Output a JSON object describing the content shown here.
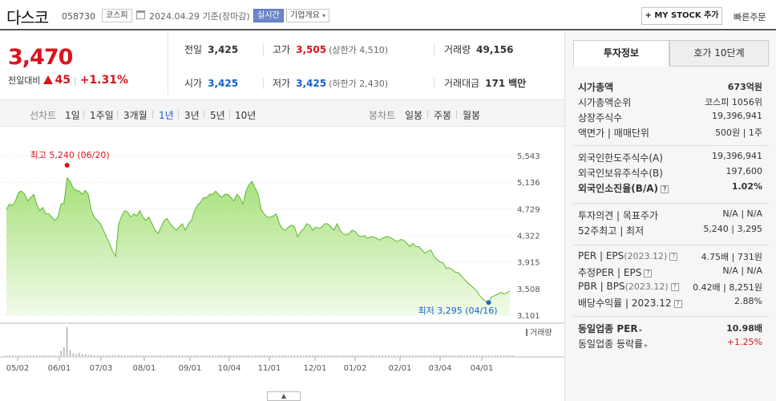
{
  "header": {
    "name": "다스코",
    "code": "058730",
    "market": "코스피",
    "date": "2024.04.29",
    "basis": "기준(장마감)",
    "live": "실시간",
    "company_info": "기업개요",
    "mystock": "+ MY STOCK 추가",
    "fast_order": "빠른주문"
  },
  "price": {
    "current": "3,470",
    "change_label": "전일대비",
    "change": "45",
    "change_pct": "+1.31%"
  },
  "stats": {
    "prev_label": "전일",
    "prev": "3,425",
    "high_label": "고가",
    "high": "3,505",
    "upper_limit": "(상한가 4,510)",
    "volume_label": "거래량",
    "volume": "49,156",
    "open_label": "시가",
    "open": "3,425",
    "low_label": "저가",
    "low": "3,425",
    "lower_limit": "(하한가 2,430)",
    "amount_label": "거래대금",
    "amount": "171",
    "amount_unit": "백만"
  },
  "period": {
    "line_label": "선차트",
    "line_items": [
      "1일",
      "1주일",
      "3개월",
      "1년",
      "3년",
      "5년",
      "10년"
    ],
    "active": "1년",
    "candle_label": "봉차트",
    "candle_items": [
      "일봉",
      "주봉",
      "월봉"
    ]
  },
  "chart_data": {
    "type": "area",
    "yticks": [
      5543,
      5136,
      4729,
      4322,
      3915,
      3508,
      3101
    ],
    "ylim": [
      3101,
      5543
    ],
    "xticks": [
      "05/02",
      "06/01",
      "07/03",
      "08/01",
      "09/01",
      "10/04",
      "11/01",
      "12/01",
      "01/02",
      "02/01",
      "03/04",
      "04/01"
    ],
    "max_annotation": "최고 5,240 (06/20)",
    "min_annotation": "최저 3,295 (04/16)",
    "volume_label": "거래량",
    "series": [
      {
        "values": [
          4720,
          4800,
          4780,
          4850,
          4980,
          5000,
          4950,
          4850,
          4900,
          4950,
          4800,
          4700,
          4750,
          4650,
          4650,
          4600,
          4550,
          4600,
          4800,
          4820,
          5200,
          5150,
          5050,
          5010,
          5000,
          4950,
          5010,
          4950,
          4700,
          4600,
          4550,
          4500,
          4400,
          4300,
          4200,
          4080,
          4000,
          4500,
          4620,
          4700,
          4680,
          4600,
          4650,
          4620,
          4700,
          4600,
          4550,
          4600,
          4500,
          4400,
          4350,
          4450,
          4550,
          4580,
          4500,
          4450,
          4400,
          4450,
          4500,
          4400,
          4500,
          4550,
          4700,
          4780,
          4830,
          4900,
          4900,
          4950,
          4950,
          5000,
          4950,
          4900,
          4950,
          4950,
          4900,
          4850,
          4950,
          4900,
          4800,
          5000,
          5100,
          5150,
          5050,
          4950,
          4720,
          4650,
          4600,
          4600,
          4620,
          4650,
          4500,
          4420,
          4400,
          4450,
          4480,
          4450,
          4300,
          4380,
          4420,
          4500,
          4480,
          4400,
          4450,
          4430,
          4450,
          4500,
          4500,
          4450,
          4400,
          4500,
          4400,
          4350,
          4330,
          4350,
          4400,
          4380,
          4320,
          4300,
          4320,
          4280,
          4300,
          4300,
          4280,
          4250,
          4280,
          4300,
          4300,
          4280,
          4250,
          4230,
          4260,
          4250,
          4200,
          4150,
          4200,
          4150,
          4150,
          4100,
          4050,
          4080,
          4100,
          4000,
          3950,
          3920,
          3900,
          3820,
          3830,
          3800,
          3760,
          3750,
          3700,
          3650,
          3600,
          3560,
          3520,
          3480,
          3400,
          3350,
          3320,
          3295,
          3380,
          3400,
          3420,
          3450,
          3430,
          3440,
          3470
        ]
      }
    ],
    "volume": [
      3,
      2,
      2,
      1,
      2,
      1,
      2,
      2,
      1,
      2,
      2,
      1,
      1,
      2,
      1,
      1,
      1,
      2,
      20,
      35,
      110,
      22,
      10,
      8,
      12,
      8,
      6,
      5,
      4,
      3,
      3,
      3,
      3,
      2,
      2,
      2,
      3,
      5,
      4,
      3,
      3,
      3,
      2,
      3,
      2,
      2,
      2,
      2,
      2,
      1,
      2,
      2,
      2,
      1,
      2,
      2,
      2,
      2,
      1,
      1,
      2,
      1,
      2,
      1,
      2,
      1,
      1,
      1,
      2,
      1,
      1,
      2,
      1,
      2,
      2,
      1,
      1,
      1,
      2,
      1,
      1,
      1,
      2,
      1,
      1,
      1,
      1,
      1,
      1,
      1,
      1,
      2,
      1,
      1,
      1,
      1,
      1,
      1,
      1,
      1,
      1,
      1,
      1,
      1,
      1,
      1,
      1,
      1,
      1,
      1,
      1,
      1,
      1,
      1,
      1,
      1,
      1,
      1,
      1,
      1,
      1,
      1,
      1,
      1,
      1,
      1,
      1,
      1,
      1,
      1,
      1,
      1,
      1,
      1,
      1,
      1,
      1,
      1,
      1,
      1,
      1,
      1,
      1,
      1,
      1,
      1,
      1,
      1,
      1,
      1,
      1,
      1,
      1,
      1,
      1,
      1,
      1,
      1,
      1,
      1,
      1,
      1,
      1,
      1,
      1,
      1,
      1,
      1
    ]
  },
  "panel": {
    "tab_active": "투자정보",
    "tab_other": "호가 10단계",
    "g1": [
      {
        "label": "시가총액",
        "value": "673억원",
        "bold": true
      },
      {
        "label": "시가총액순위",
        "value": "코스피 1056위"
      },
      {
        "label": "상장주식수",
        "value": "19,396,941"
      },
      {
        "label": "액면가 | 매매단위",
        "value": "500원 | 1주"
      }
    ],
    "g2": [
      {
        "label": "외국인한도주식수(A)",
        "value": "19,396,941"
      },
      {
        "label": "외국인보유주식수(B)",
        "value": "197,600"
      },
      {
        "label": "외국인소진율(B/A)",
        "value": "1.02%",
        "bold": true
      }
    ],
    "g3": [
      {
        "label": "투자의견 | 목표주가",
        "value": "N/A | N/A"
      },
      {
        "label": "52주최고 | 최저",
        "value": "5,240 | 3,295"
      }
    ],
    "g4": [
      {
        "label": "PER | EPS",
        "label2": "(2023.12)",
        "value": "4.75배 | 731원"
      },
      {
        "label": "추정PER | EPS",
        "value": "N/A | N/A"
      },
      {
        "label": "PBR | BPS",
        "label2": "(2023.12)",
        "value": "0.42배 | 8,251원"
      },
      {
        "label": "배당수익률 | 2023.12",
        "value": "2.88%"
      }
    ],
    "g5": [
      {
        "label": "동일업종 PER",
        "value": "10.98배",
        "bold": true
      },
      {
        "label": "동일업종 등락률",
        "value": "+1.25%",
        "red": true
      }
    ]
  }
}
